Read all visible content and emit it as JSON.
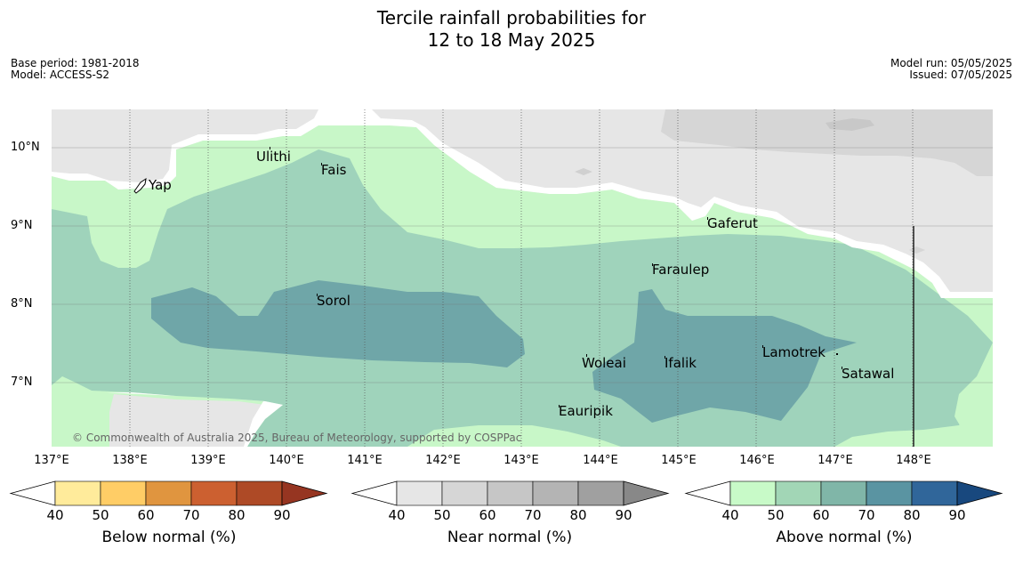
{
  "header": {
    "title_line1": "Tercile rainfall probabilities for",
    "title_line2": "12 to 18 May 2025",
    "base_period": "Base period: 1981-2018",
    "model": "Model: ACCESS-S2",
    "model_run": "Model run: 05/05/2025",
    "issued": "Issued: 07/05/2025"
  },
  "map": {
    "lat_labels": [
      "10°N",
      "9°N",
      "8°N",
      "7°N"
    ],
    "lon_labels": [
      "137°E",
      "138°E",
      "139°E",
      "140°E",
      "141°E",
      "142°E",
      "143°E",
      "144°E",
      "145°E",
      "146°E",
      "147°E",
      "148°E"
    ],
    "places": [
      {
        "name": "Yap"
      },
      {
        "name": "Ulithi"
      },
      {
        "name": "Fais"
      },
      {
        "name": "Gaferut"
      },
      {
        "name": "Faraulep"
      },
      {
        "name": "Sorol"
      },
      {
        "name": "Woleai"
      },
      {
        "name": "Ifalik"
      },
      {
        "name": "Lamotrek"
      },
      {
        "name": "Satawal"
      },
      {
        "name": "Eauripik"
      }
    ],
    "copyright": "© Commonwealth of Australia 2025, Bureau of Meteorology, supported by COSPPac",
    "colors": {
      "near_normal_40": "#e6e6e6",
      "near_normal_50": "#d6d6d6",
      "above_normal_40": "#c8f7c8",
      "above_normal_50": "#9fd3bb",
      "above_normal_60": "#6fa6a8"
    }
  },
  "legends": [
    {
      "title": "Below normal (%)",
      "ticks": [
        "40",
        "50",
        "60",
        "70",
        "80",
        "90"
      ],
      "colors": [
        "#ffeb9b",
        "#ffcd66",
        "#e0953f",
        "#cc6030",
        "#ae4a26",
        "#963521"
      ]
    },
    {
      "title": "Near normal (%)",
      "ticks": [
        "40",
        "50",
        "60",
        "70",
        "80",
        "90"
      ],
      "colors": [
        "#e6e6e6",
        "#d6d6d6",
        "#c6c6c6",
        "#b4b4b4",
        "#a0a0a0",
        "#888888"
      ]
    },
    {
      "title": "Above normal (%)",
      "ticks": [
        "40",
        "50",
        "60",
        "70",
        "80",
        "90"
      ],
      "colors": [
        "#c8fac8",
        "#a2d6b6",
        "#80b6a8",
        "#5a94a2",
        "#30669a",
        "#18487e"
      ]
    }
  ]
}
